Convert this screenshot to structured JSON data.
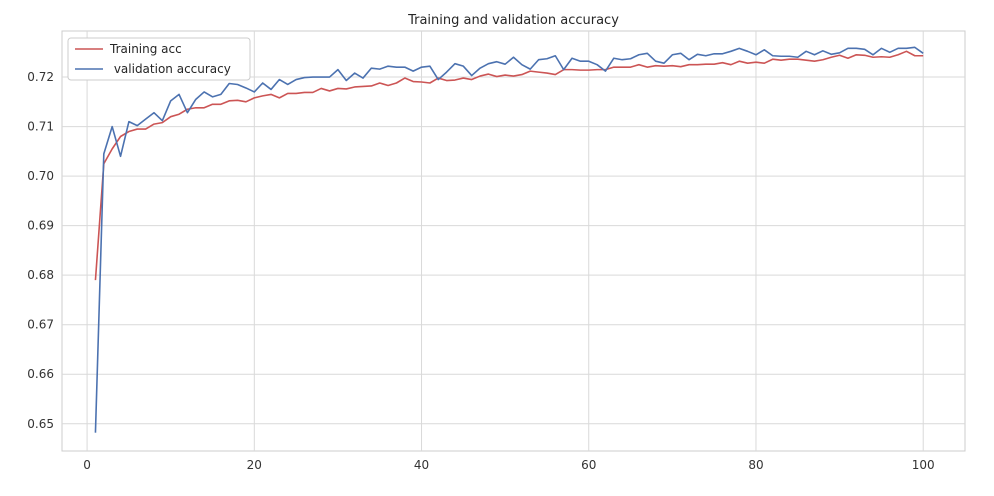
{
  "chart_data": {
    "type": "line",
    "title": "Training and validation accuracy",
    "xlabel": "",
    "ylabel": "",
    "xlim": [
      -3,
      105
    ],
    "ylim": [
      0.6445,
      0.7293
    ],
    "xticks": [
      0,
      20,
      40,
      60,
      80,
      100
    ],
    "yticks": [
      0.65,
      0.66,
      0.67,
      0.68,
      0.69,
      0.7,
      0.71,
      0.72
    ],
    "ytick_labels": [
      "0.65",
      "0.66",
      "0.67",
      "0.68",
      "0.69",
      "0.70",
      "0.71",
      "0.72"
    ],
    "grid": true,
    "legend_position": "top-left",
    "x": [
      1,
      2,
      3,
      4,
      5,
      6,
      7,
      8,
      9,
      10,
      11,
      12,
      13,
      14,
      15,
      16,
      17,
      18,
      19,
      20,
      21,
      22,
      23,
      24,
      25,
      26,
      27,
      28,
      29,
      30,
      31,
      32,
      33,
      34,
      35,
      36,
      37,
      38,
      39,
      40,
      41,
      42,
      43,
      44,
      45,
      46,
      47,
      48,
      49,
      50,
      51,
      52,
      53,
      54,
      55,
      56,
      57,
      58,
      59,
      60,
      61,
      62,
      63,
      64,
      65,
      66,
      67,
      68,
      69,
      70,
      71,
      72,
      73,
      74,
      75,
      76,
      77,
      78,
      79,
      80,
      81,
      82,
      83,
      84,
      85,
      86,
      87,
      88,
      89,
      90,
      91,
      92,
      93,
      94,
      95,
      96,
      97,
      98,
      99,
      100
    ],
    "series": [
      {
        "name": "Training acc",
        "color": "#cc5555",
        "values": [
          0.679,
          0.7025,
          0.7055,
          0.708,
          0.709,
          0.7095,
          0.7095,
          0.7105,
          0.7108,
          0.712,
          0.7125,
          0.7135,
          0.7138,
          0.7138,
          0.7145,
          0.7145,
          0.7152,
          0.7153,
          0.715,
          0.7158,
          0.7162,
          0.7165,
          0.7158,
          0.7167,
          0.7167,
          0.7169,
          0.7169,
          0.7177,
          0.7172,
          0.7177,
          0.7176,
          0.718,
          0.7181,
          0.7182,
          0.7188,
          0.7183,
          0.7188,
          0.7198,
          0.7191,
          0.719,
          0.7188,
          0.7198,
          0.7193,
          0.7194,
          0.7198,
          0.7195,
          0.7202,
          0.7206,
          0.7201,
          0.7204,
          0.7202,
          0.7205,
          0.7212,
          0.721,
          0.7208,
          0.7205,
          0.7215,
          0.7215,
          0.7214,
          0.7214,
          0.7215,
          0.7215,
          0.722,
          0.722,
          0.722,
          0.7225,
          0.722,
          0.7223,
          0.7222,
          0.7223,
          0.7221,
          0.7225,
          0.7225,
          0.7226,
          0.7226,
          0.7229,
          0.7225,
          0.7232,
          0.7228,
          0.723,
          0.7228,
          0.7236,
          0.7234,
          0.7236,
          0.7236,
          0.7234,
          0.7232,
          0.7235,
          0.724,
          0.7244,
          0.7238,
          0.7245,
          0.7244,
          0.724,
          0.7241,
          0.724,
          0.7245,
          0.7252,
          0.7243,
          0.7243
        ]
      },
      {
        "name": " validation accuracy",
        "color": "#4c72b0",
        "values": [
          0.6482,
          0.7045,
          0.71,
          0.704,
          0.711,
          0.7102,
          0.7115,
          0.7128,
          0.7112,
          0.7152,
          0.7165,
          0.7128,
          0.7155,
          0.717,
          0.716,
          0.7165,
          0.7187,
          0.7185,
          0.7178,
          0.717,
          0.7188,
          0.7175,
          0.7195,
          0.7185,
          0.7195,
          0.7199,
          0.72,
          0.72,
          0.72,
          0.7215,
          0.7193,
          0.7208,
          0.7198,
          0.7218,
          0.7216,
          0.7222,
          0.722,
          0.722,
          0.7212,
          0.722,
          0.7222,
          0.7195,
          0.721,
          0.7227,
          0.7222,
          0.7203,
          0.7218,
          0.7227,
          0.7231,
          0.7226,
          0.724,
          0.7225,
          0.7216,
          0.7235,
          0.7237,
          0.7243,
          0.7215,
          0.7238,
          0.7232,
          0.7232,
          0.7225,
          0.7212,
          0.7238,
          0.7235,
          0.7237,
          0.7245,
          0.7248,
          0.7232,
          0.7228,
          0.7245,
          0.7248,
          0.7235,
          0.7246,
          0.7243,
          0.7247,
          0.7247,
          0.7252,
          0.7258,
          0.7252,
          0.7245,
          0.7255,
          0.7243,
          0.7242,
          0.7242,
          0.724,
          0.7252,
          0.7245,
          0.7253,
          0.7246,
          0.7249,
          0.7258,
          0.7258,
          0.7256,
          0.7245,
          0.7258,
          0.725,
          0.7258,
          0.7258,
          0.726,
          0.7248
        ]
      }
    ]
  }
}
